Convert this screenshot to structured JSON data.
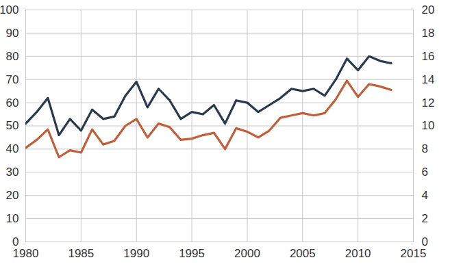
{
  "chart_data": {
    "type": "line",
    "x": [
      1980,
      1981,
      1982,
      1983,
      1984,
      1985,
      1986,
      1987,
      1988,
      1989,
      1990,
      1991,
      1992,
      1993,
      1994,
      1995,
      1996,
      1997,
      1998,
      1999,
      2000,
      2001,
      2002,
      2003,
      2004,
      2005,
      2006,
      2007,
      2008,
      2009,
      2010,
      2011,
      2012,
      2013
    ],
    "series": [
      {
        "color": "#2a3a4c",
        "values": [
          51,
          56,
          62,
          46,
          53,
          48,
          57,
          53,
          54,
          63,
          69,
          58,
          66,
          61,
          53,
          56,
          55,
          59,
          51,
          61,
          60,
          56,
          59,
          62,
          66,
          65,
          66,
          63,
          70,
          79,
          74,
          80,
          78,
          77
        ]
      },
      {
        "color": "#c0603a",
        "axis": "y2",
        "values": [
          8.1,
          8.8,
          9.7,
          7.3,
          7.9,
          7.7,
          9.7,
          8.4,
          8.7,
          10.0,
          10.6,
          9.0,
          10.2,
          9.9,
          8.8,
          8.9,
          9.2,
          9.4,
          8.0,
          9.8,
          9.5,
          9.0,
          9.6,
          10.7,
          10.9,
          11.1,
          10.9,
          11.1,
          12.3,
          13.9,
          12.5,
          13.6,
          13.4,
          13.1
        ]
      }
    ],
    "xlim": [
      1980,
      2015
    ],
    "xticks": [
      1980,
      1985,
      1990,
      1995,
      2000,
      2005,
      2010,
      2015
    ],
    "ylim": [
      0,
      100
    ],
    "yticks": [
      0,
      10,
      20,
      30,
      40,
      50,
      60,
      70,
      80,
      90,
      100
    ],
    "y2lim": [
      0,
      20
    ],
    "y2ticks": [
      0,
      2,
      4,
      6,
      8,
      10,
      12,
      14,
      16,
      18,
      20
    ],
    "grid": true
  }
}
